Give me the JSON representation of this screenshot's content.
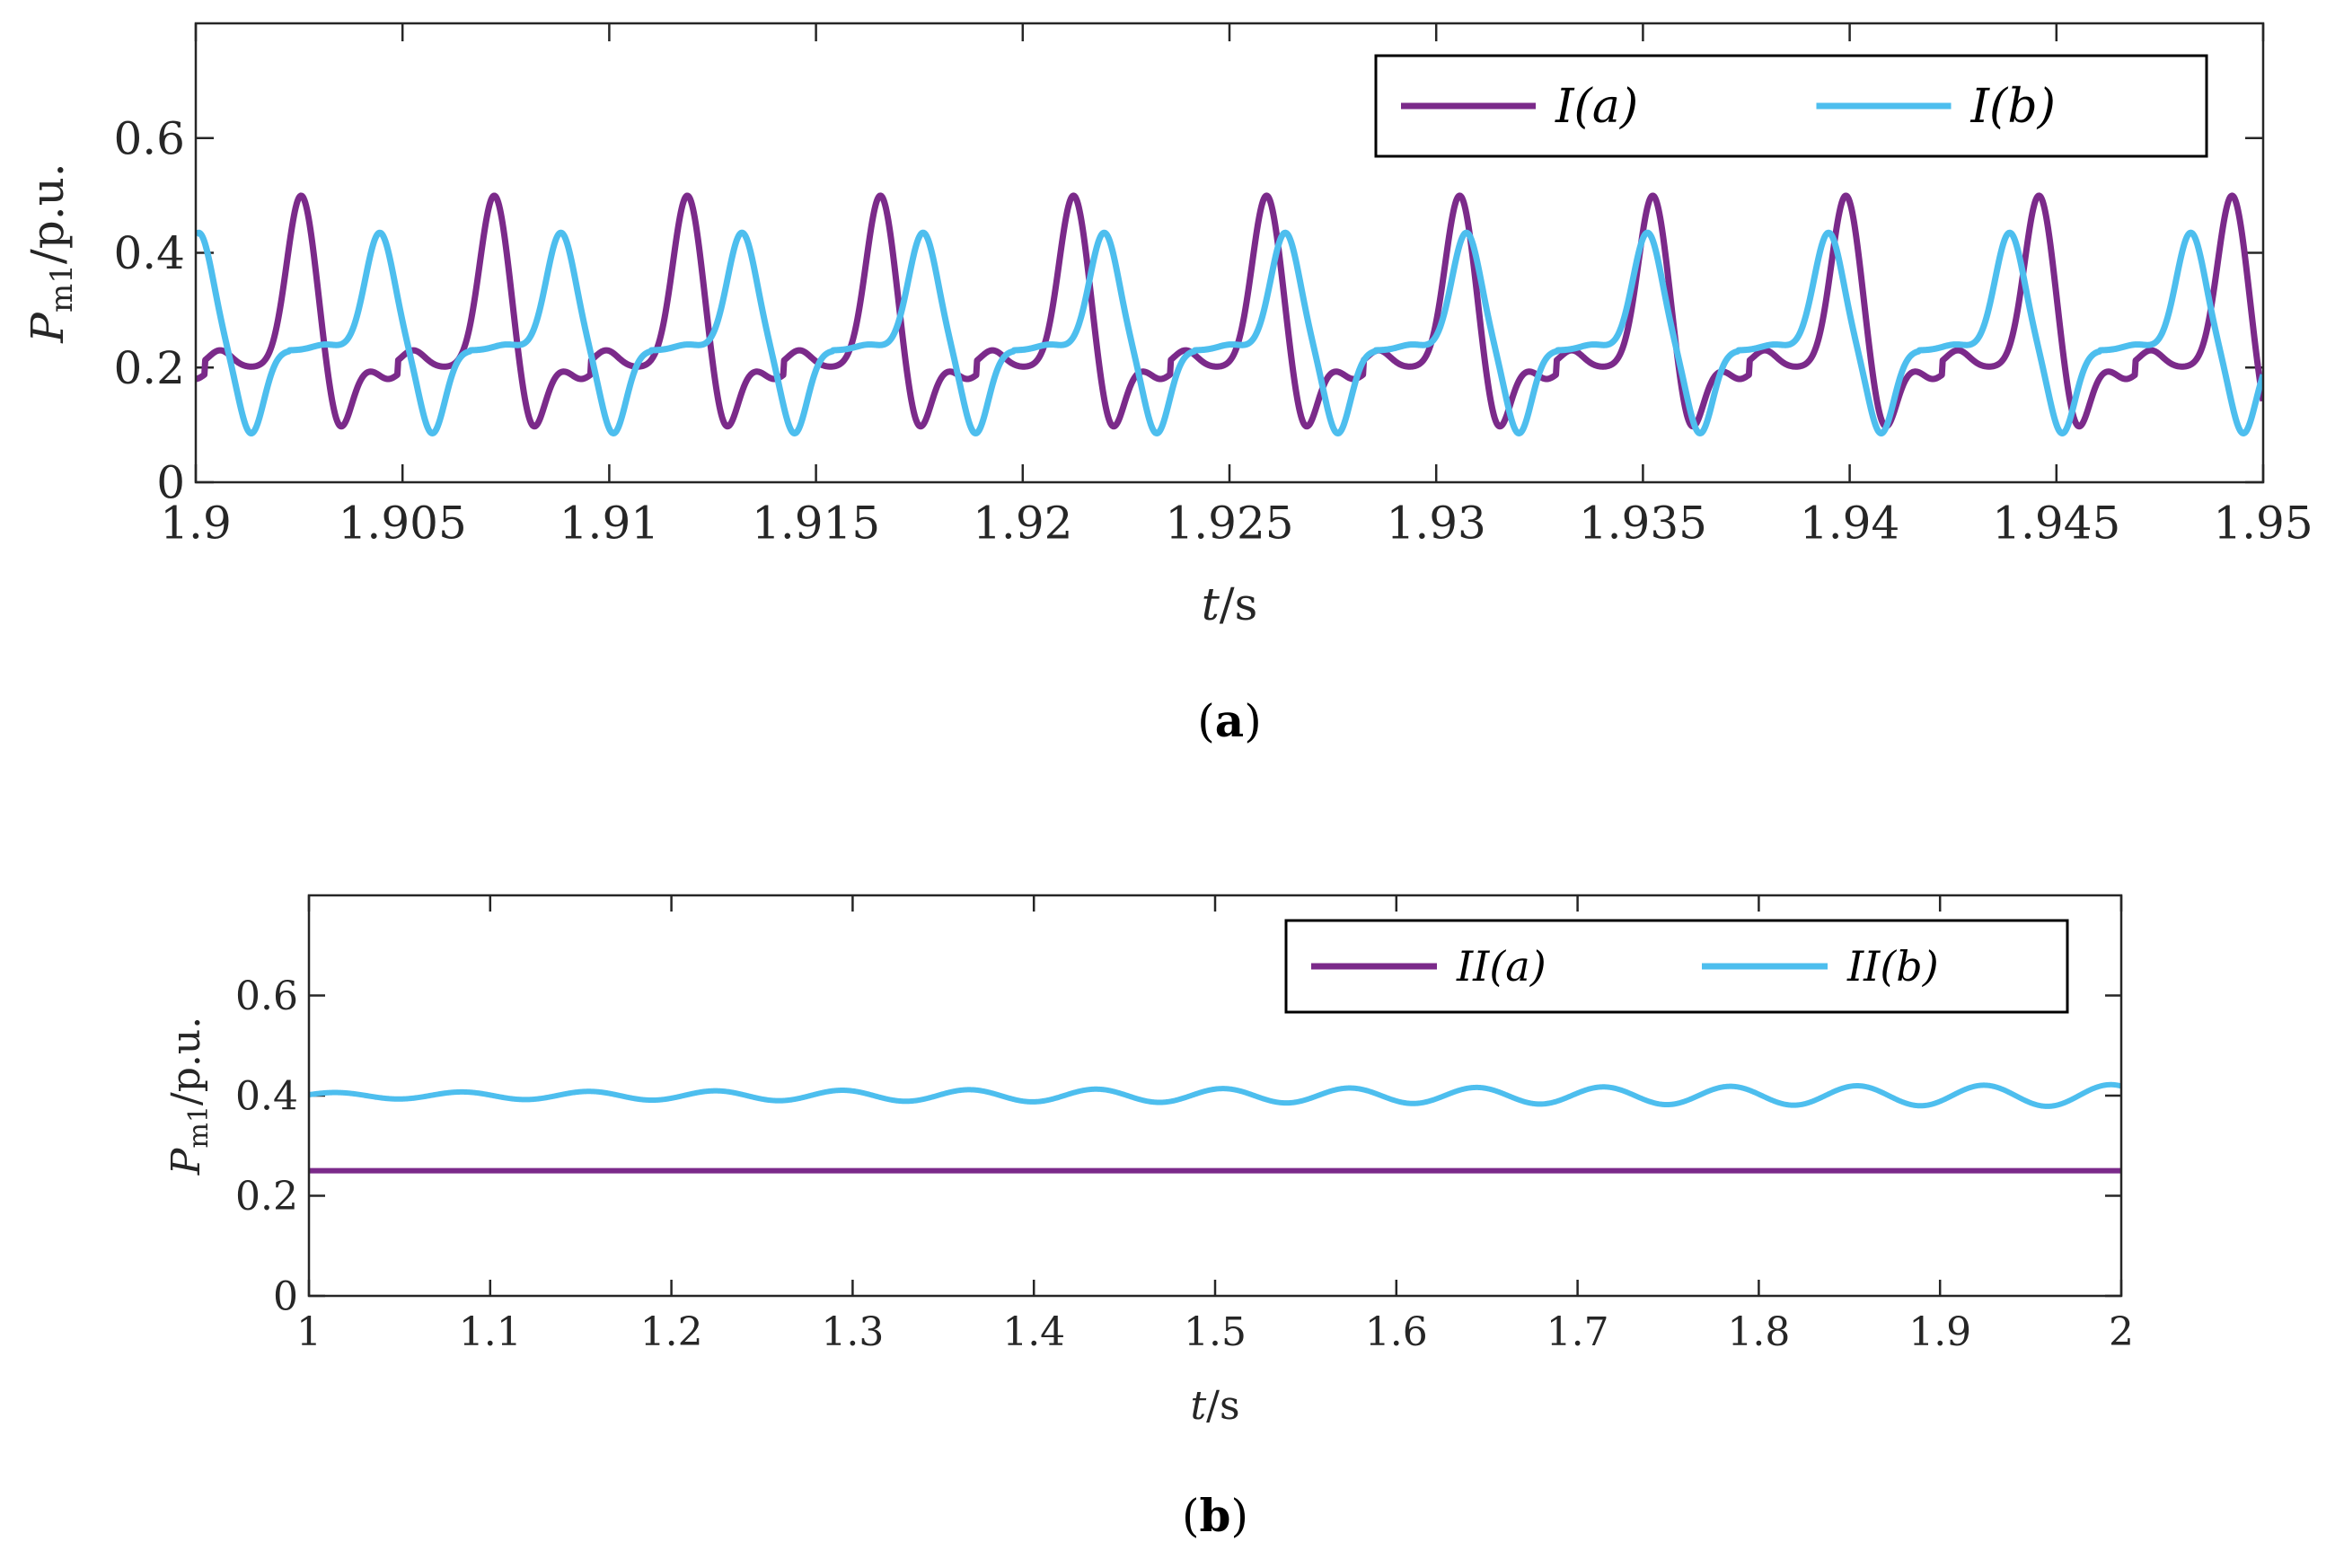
{
  "colors": {
    "series_a": "#7B2A8A",
    "series_b": "#4DBEEE",
    "axis": "#262626",
    "legend_border": "#000000"
  },
  "chart_data": [
    {
      "type": "line",
      "panel": "a",
      "caption": "a",
      "xlabel": "t/s",
      "ylabel": "P_m1/p.u.",
      "ylabel_main": "P",
      "ylabel_sub": "m1",
      "ylabel_unit": "/p.u.",
      "xlim": [
        1.9,
        1.95
      ],
      "ylim": [
        0,
        0.8
      ],
      "xticks": [
        1.9,
        1.905,
        1.91,
        1.915,
        1.92,
        1.925,
        1.93,
        1.935,
        1.94,
        1.945,
        1.95
      ],
      "xtick_labels": [
        "1.9",
        "1.905",
        "1.91",
        "1.915",
        "1.92",
        "1.925",
        "1.93",
        "1.935",
        "1.94",
        "1.945",
        "1.95"
      ],
      "yticks": [
        0,
        0.2,
        0.4,
        0.6
      ],
      "ytick_labels": [
        "0",
        "0.2",
        "0.4",
        "0.6"
      ],
      "legend_location": "top-right",
      "series": [
        {
          "name": "I(a)",
          "color": "#7B2A8A",
          "period": 0.00467,
          "phase_peak": 1.90255,
          "baseline": 0.2,
          "peak": 0.5,
          "min": 0.09,
          "kind": "pulse_a"
        },
        {
          "name": "I(b)",
          "color": "#4DBEEE",
          "period": 0.00438,
          "phase_peak": 1.90445,
          "baseline": 0.23,
          "peak": 0.435,
          "min": 0.085,
          "kind": "pulse_b"
        }
      ]
    },
    {
      "type": "line",
      "panel": "b",
      "caption": "b",
      "xlabel": "t/s",
      "ylabel": "P_m1/p.u.",
      "ylabel_main": "P",
      "ylabel_sub": "m1",
      "ylabel_unit": "/p.u.",
      "xlim": [
        1,
        2
      ],
      "ylim": [
        0,
        0.8
      ],
      "xticks": [
        1,
        1.1,
        1.2,
        1.3,
        1.4,
        1.5,
        1.6,
        1.7,
        1.8,
        1.9,
        2
      ],
      "xtick_labels": [
        "1",
        "1.1",
        "1.2",
        "1.3",
        "1.4",
        "1.5",
        "1.6",
        "1.7",
        "1.8",
        "1.9",
        "2"
      ],
      "yticks": [
        0,
        0.2,
        0.4,
        0.6
      ],
      "ytick_labels": [
        "0",
        "0.2",
        "0.4",
        "0.6"
      ],
      "legend_location": "top-right",
      "series": [
        {
          "name": "II(a)",
          "color": "#7B2A8A",
          "constant": 0.25,
          "kind": "constant"
        },
        {
          "name": "II(b)",
          "color": "#4DBEEE",
          "mean": 0.4,
          "amp_start": 0.006,
          "amp_end": 0.022,
          "period": 0.07,
          "kind": "sine"
        }
      ]
    }
  ]
}
